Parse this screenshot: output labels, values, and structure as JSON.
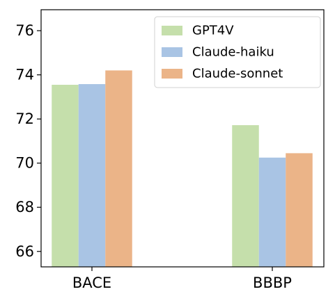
{
  "chart_data": {
    "type": "bar",
    "title": "",
    "xlabel": "",
    "ylabel": "",
    "categories": [
      "BACE",
      "BBBP"
    ],
    "series": [
      {
        "name": "GPT4V",
        "values": [
          73.55,
          71.72
        ],
        "color": "#c5dfab"
      },
      {
        "name": "Claude-haiku",
        "values": [
          73.58,
          70.25
        ],
        "color": "#a9c4e4"
      },
      {
        "name": "Claude-sonnet",
        "values": [
          74.2,
          70.45
        ],
        "color": "#ebb488"
      }
    ],
    "ylim": [
      65.3,
      76.95
    ],
    "yticks": [
      "66",
      "68",
      "70",
      "72",
      "74",
      "76"
    ],
    "grid": false,
    "legend_position": "top-right"
  }
}
